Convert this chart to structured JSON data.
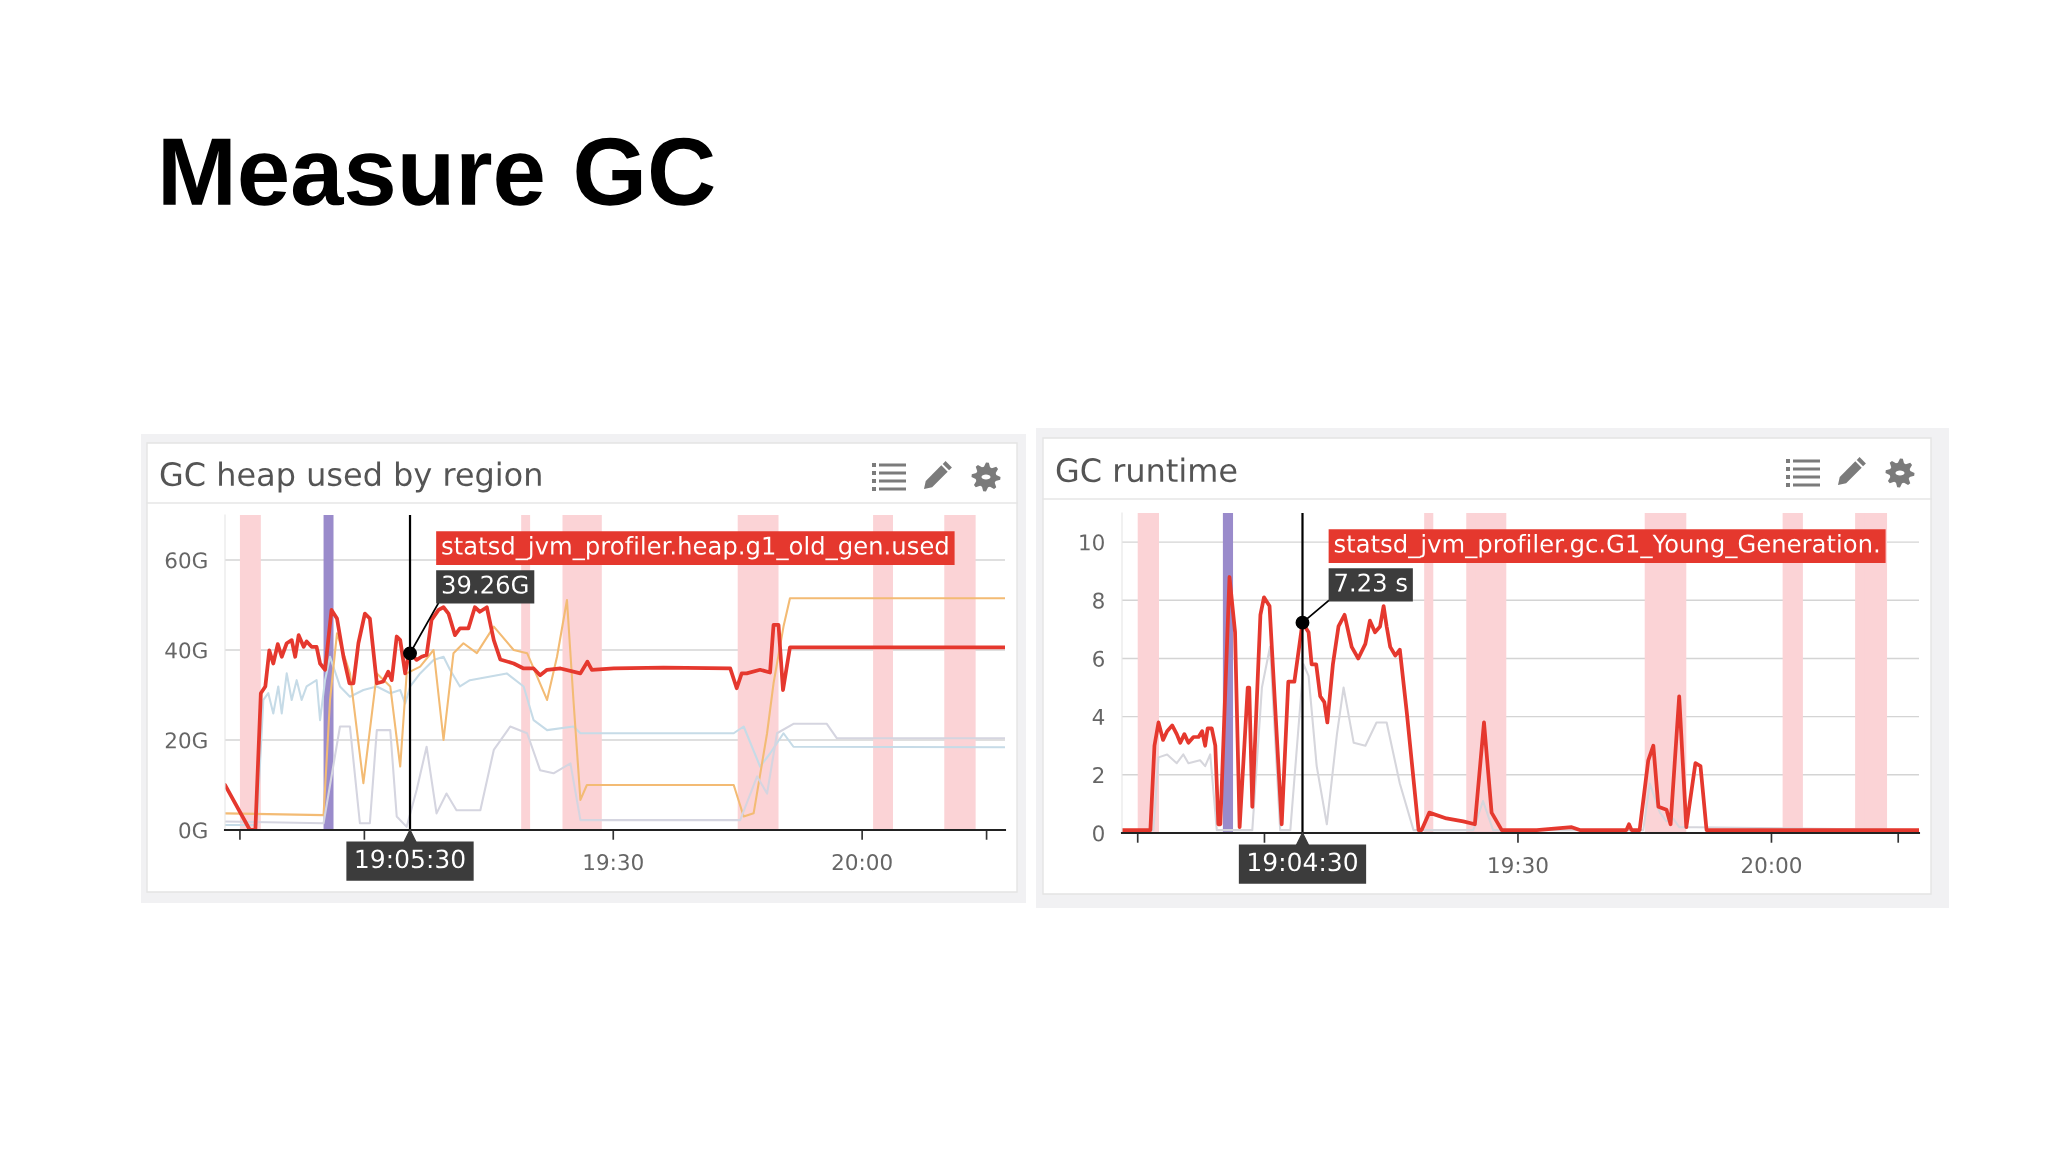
{
  "chart_data": [
    {
      "type": "other",
      "title": "Measure GC"
    },
    {
      "type": "line",
      "title": "GC heap used by region",
      "xlim": [
        18.72,
        20.287
      ],
      "ylim": [
        0,
        70
      ],
      "xticks": [
        {
          "value": 18.75,
          "label": null
        },
        {
          "value": 19,
          "label": null
        },
        {
          "value": 19.5,
          "label": "19:30"
        },
        {
          "value": 20,
          "label": "20:00"
        },
        {
          "value": 20.25,
          "label": null
        }
      ],
      "yticks": [
        {
          "value": 0,
          "label": "0G"
        },
        {
          "value": 20,
          "label": "20G"
        },
        {
          "value": 40,
          "label": "40G"
        },
        {
          "value": 60,
          "label": "60G"
        }
      ],
      "grid": "y",
      "bands": [
        {
          "axis": "x",
          "from": 18.75,
          "to": 18.792,
          "color": "#fbd3d6"
        },
        {
          "axis": "x",
          "from": 18.918,
          "to": 18.938,
          "color": "#9a8bcb"
        },
        {
          "axis": "x",
          "from": 19.315,
          "to": 19.333,
          "color": "#fbd3d6"
        },
        {
          "axis": "x",
          "from": 19.398,
          "to": 19.433,
          "color": "#fbd3d6"
        },
        {
          "axis": "x",
          "from": 19.417,
          "to": 19.477,
          "color": "#fbd3d6"
        },
        {
          "axis": "x",
          "from": 19.75,
          "to": 19.812,
          "color": "#fbd3d6"
        },
        {
          "axis": "x",
          "from": 19.792,
          "to": 19.832,
          "color": "#fbd3d6"
        },
        {
          "axis": "x",
          "from": 20.022,
          "to": 20.062,
          "color": "#fbd3d6"
        },
        {
          "axis": "x",
          "from": 20.165,
          "to": 20.213,
          "color": "#fbd3d6"
        },
        {
          "axis": "x",
          "from": 20.183,
          "to": 20.228,
          "color": "#fbd3d6"
        }
      ],
      "ref_lines": [
        {
          "axis": "x",
          "value": 19.0917,
          "label": "19:05:30",
          "color": "#000000"
        }
      ],
      "annotations": [
        {
          "text": "39.26G",
          "x": 19.0917,
          "y": 39.26
        }
      ],
      "series": [
        {
          "color": "#c6dbe7",
          "x": [
            18.72,
            18.784,
            18.797,
            18.807,
            18.817,
            18.827,
            18.834,
            18.844,
            18.854,
            18.864,
            18.874,
            18.884,
            18.904,
            18.911,
            18.921,
            18.931,
            18.951,
            18.971,
            18.998,
            19.025,
            19.052,
            19.072,
            19.082,
            19.092,
            19.112,
            19.139,
            19.159,
            19.172,
            19.192,
            19.212,
            19.286,
            19.32,
            19.34,
            19.367,
            19.42,
            19.434,
            19.742,
            19.762,
            19.795,
            19.815,
            19.842,
            19.862,
            20.287
          ],
          "values": [
            1.1,
            1.1,
            28.9,
            30.4,
            25.9,
            31.9,
            25.9,
            34.8,
            28.9,
            33.3,
            28.9,
            31.9,
            33.3,
            24.4,
            33.3,
            38.5,
            31.9,
            29.6,
            31.1,
            31.9,
            30.4,
            31.1,
            28.1,
            31.9,
            34.8,
            37.8,
            38.5,
            35.6,
            31.9,
            33.3,
            34.8,
            31.9,
            24.4,
            22.2,
            23.0,
            21.5,
            21.5,
            23.0,
            14.1,
            17.0,
            21.5,
            18.5,
            18.4
          ]
        },
        {
          "color": "#f3bb74",
          "x": [
            18.72,
            18.918,
            18.931,
            18.945,
            18.971,
            18.998,
            19.025,
            19.052,
            19.072,
            19.085,
            19.112,
            19.139,
            19.159,
            19.179,
            19.199,
            19.226,
            19.26,
            19.3,
            19.327,
            19.367,
            19.387,
            19.407,
            19.42,
            19.434,
            19.447,
            19.742,
            19.762,
            19.782,
            19.809,
            19.822,
            19.842,
            19.855,
            20.287
          ],
          "values": [
            3.7,
            3.3,
            28.9,
            43.7,
            34.8,
            10.4,
            34.8,
            31.9,
            14.1,
            34.8,
            36.3,
            40.0,
            20.0,
            39.3,
            41.5,
            39.3,
            45.2,
            40.0,
            39.3,
            28.9,
            38.5,
            51.1,
            28.9,
            6.7,
            10.0,
            10.0,
            3.0,
            3.7,
            21.5,
            32.6,
            45.2,
            51.5,
            51.5
          ]
        },
        {
          "color": "#d5d5e0",
          "x": [
            18.72,
            18.918,
            18.951,
            18.971,
            18.991,
            19.011,
            19.025,
            19.052,
            19.065,
            19.085,
            19.105,
            19.125,
            19.145,
            19.165,
            19.185,
            19.212,
            19.233,
            19.26,
            19.293,
            19.327,
            19.353,
            19.38,
            19.414,
            19.434,
            19.742,
            19.755,
            19.789,
            19.809,
            19.829,
            19.862,
            19.929,
            19.949,
            20.287
          ],
          "values": [
            1.9,
            1.5,
            23.0,
            23.0,
            1.5,
            1.5,
            22.2,
            22.2,
            3.0,
            0.7,
            8.9,
            18.5,
            3.7,
            8.1,
            4.4,
            4.4,
            4.4,
            17.8,
            23.0,
            21.5,
            13.3,
            12.6,
            14.8,
            2.2,
            2.2,
            2.2,
            11.9,
            8.1,
            21.5,
            23.6,
            23.6,
            20.4,
            20.4
          ]
        },
        {
          "name": "statsd_jvm_profiler.heap.g1_old_gen.used",
          "color": "#e5382e",
          "x": [
            18.72,
            18.77,
            18.781,
            18.792,
            18.801,
            18.809,
            18.817,
            18.826,
            18.834,
            18.844,
            18.854,
            18.861,
            18.868,
            18.878,
            18.884,
            18.894,
            18.904,
            18.911,
            18.921,
            18.934,
            18.945,
            18.958,
            18.97,
            18.978,
            18.988,
            19.001,
            19.011,
            19.025,
            19.038,
            19.048,
            19.055,
            19.065,
            19.072,
            19.082,
            19.088,
            19.0917,
            19.105,
            19.115,
            19.125,
            19.135,
            19.149,
            19.159,
            19.169,
            19.182,
            19.192,
            19.209,
            19.222,
            19.232,
            19.246,
            19.26,
            19.273,
            19.3,
            19.32,
            19.34,
            19.353,
            19.367,
            19.394,
            19.434,
            19.448,
            19.457,
            19.501,
            19.601,
            19.735,
            19.748,
            19.758,
            19.768,
            19.795,
            19.815,
            19.822,
            19.832,
            19.841,
            19.855,
            20.287
          ],
          "values": [
            10.0,
            0,
            0,
            30.4,
            31.9,
            39.9,
            37.0,
            41.3,
            38.5,
            41.5,
            42.2,
            38.5,
            43.3,
            40.7,
            41.9,
            40.7,
            40.7,
            37.0,
            35.6,
            48.9,
            47.0,
            38.5,
            32.6,
            32.6,
            41.5,
            48.1,
            47.0,
            32.6,
            33.0,
            35.2,
            33.3,
            43.0,
            42.2,
            34.8,
            38.5,
            39.26,
            37.8,
            38.5,
            38.9,
            46.7,
            48.9,
            49.5,
            48.1,
            43.3,
            44.8,
            44.8,
            49.5,
            48.5,
            49.5,
            42.2,
            37.9,
            37.0,
            35.9,
            35.9,
            34.4,
            35.6,
            35.9,
            34.8,
            37.4,
            35.6,
            35.9,
            36.1,
            35.9,
            31.5,
            34.8,
            34.8,
            35.6,
            35.0,
            45.6,
            45.6,
            31.1,
            40.6,
            40.6
          ]
        }
      ]
    },
    {
      "type": "line",
      "title": "GC runtime",
      "xlim": [
        18.719,
        20.291
      ],
      "ylim": [
        0,
        11
      ],
      "xticks": [
        {
          "value": 18.75,
          "label": null
        },
        {
          "value": 19,
          "label": null
        },
        {
          "value": 19.5,
          "label": "19:30"
        },
        {
          "value": 20,
          "label": "20:00"
        },
        {
          "value": 20.25,
          "label": null
        }
      ],
      "yticks": [
        0,
        2,
        4,
        6,
        8,
        10
      ],
      "grid": "y",
      "bands": [
        {
          "axis": "x",
          "from": 18.75,
          "to": 18.792,
          "color": "#fbd3d6"
        },
        {
          "axis": "x",
          "from": 18.918,
          "to": 18.938,
          "color": "#9a8bcb"
        },
        {
          "axis": "x",
          "from": 19.315,
          "to": 19.333,
          "color": "#fbd3d6"
        },
        {
          "axis": "x",
          "from": 19.398,
          "to": 19.433,
          "color": "#fbd3d6"
        },
        {
          "axis": "x",
          "from": 19.417,
          "to": 19.477,
          "color": "#fbd3d6"
        },
        {
          "axis": "x",
          "from": 19.75,
          "to": 19.812,
          "color": "#fbd3d6"
        },
        {
          "axis": "x",
          "from": 19.792,
          "to": 19.832,
          "color": "#fbd3d6"
        },
        {
          "axis": "x",
          "from": 20.022,
          "to": 20.062,
          "color": "#fbd3d6"
        },
        {
          "axis": "x",
          "from": 20.165,
          "to": 20.213,
          "color": "#fbd3d6"
        },
        {
          "axis": "x",
          "from": 20.183,
          "to": 20.228,
          "color": "#fbd3d6"
        }
      ],
      "ref_lines": [
        {
          "axis": "x",
          "value": 19.075,
          "label": "19:04:30",
          "color": "#000000"
        }
      ],
      "annotations": [
        {
          "text": "7.23 s",
          "x": 19.075,
          "y": 7.23
        }
      ],
      "series": [
        {
          "color": "#d6d6dc",
          "x": [
            18.719,
            18.781,
            18.791,
            18.808,
            18.827,
            18.84,
            18.85,
            18.873,
            18.883,
            18.893,
            18.906,
            18.951,
            18.976,
            18.995,
            19.011,
            19.031,
            19.051,
            19.077,
            19.087,
            19.103,
            19.123,
            19.143,
            19.156,
            19.176,
            19.199,
            19.221,
            19.241,
            19.267,
            19.294,
            19.325,
            19.412,
            19.431,
            19.451,
            19.747,
            19.76,
            19.78,
            19.793,
            19.806,
            19.818,
            19.852,
            20.291
          ],
          "values": [
            0.1,
            0.1,
            2.6,
            2.7,
            2.4,
            2.7,
            2.4,
            2.5,
            2.3,
            2.7,
            0.1,
            0.1,
            0.1,
            5.0,
            6.4,
            0.1,
            0.1,
            5.8,
            5.4,
            2.3,
            0.3,
            3.4,
            5.0,
            3.1,
            3.0,
            3.8,
            3.8,
            1.7,
            0.1,
            0.1,
            0.1,
            1.1,
            0.1,
            0.1,
            1.7,
            0.7,
            0.4,
            0.5,
            0.2,
            0.2,
            0.1
          ]
        },
        {
          "name": "statsd_jvm_profiler.gc.G1_Young_Generation.",
          "color": "#e5382e",
          "x": [
            18.719,
            18.775,
            18.783,
            18.791,
            18.8,
            18.808,
            18.818,
            18.827,
            18.834,
            18.842,
            18.85,
            18.86,
            18.87,
            18.877,
            18.883,
            18.888,
            18.896,
            18.903,
            18.909,
            18.913,
            18.931,
            18.942,
            18.951,
            18.967,
            18.97,
            18.976,
            18.992,
            18.999,
            19.01,
            19.034,
            19.047,
            19.059,
            19.075,
            19.087,
            19.093,
            19.102,
            19.11,
            19.118,
            19.124,
            19.135,
            19.146,
            19.158,
            19.172,
            19.185,
            19.199,
            19.208,
            19.218,
            19.228,
            19.235,
            19.241,
            19.248,
            19.258,
            19.267,
            19.281,
            19.304,
            19.31,
            19.325,
            19.359,
            19.392,
            19.415,
            19.433,
            19.448,
            19.468,
            19.537,
            19.606,
            19.622,
            19.648,
            19.714,
            19.719,
            19.724,
            19.74,
            19.757,
            19.767,
            19.777,
            19.793,
            19.801,
            19.818,
            19.832,
            19.85,
            19.86,
            19.872,
            19.944,
            20.115,
            20.291
          ],
          "values": [
            0.1,
            0.1,
            3.0,
            3.8,
            3.2,
            3.5,
            3.7,
            3.4,
            3.1,
            3.4,
            3.1,
            3.3,
            3.3,
            3.5,
            3.0,
            3.6,
            3.6,
            3.0,
            0.3,
            0.3,
            8.8,
            6.9,
            0.2,
            5.0,
            5.0,
            0.9,
            7.5,
            8.1,
            7.8,
            0.3,
            5.2,
            5.2,
            7.23,
            6.9,
            5.8,
            5.8,
            4.7,
            4.5,
            3.8,
            5.8,
            7.1,
            7.5,
            6.4,
            6.0,
            6.5,
            7.3,
            6.9,
            7.1,
            7.8,
            7.1,
            6.4,
            6.1,
            6.3,
            4.1,
            0.1,
            0.1,
            0.7,
            0.5,
            0.4,
            0.3,
            3.8,
            0.7,
            0.1,
            0.1,
            0.2,
            0.1,
            0.1,
            0.1,
            0.3,
            0.1,
            0.1,
            2.5,
            3.0,
            0.9,
            0.8,
            0.3,
            4.7,
            0.2,
            2.4,
            2.3,
            0.1,
            0.1,
            0.1,
            0.1
          ]
        }
      ]
    }
  ]
}
